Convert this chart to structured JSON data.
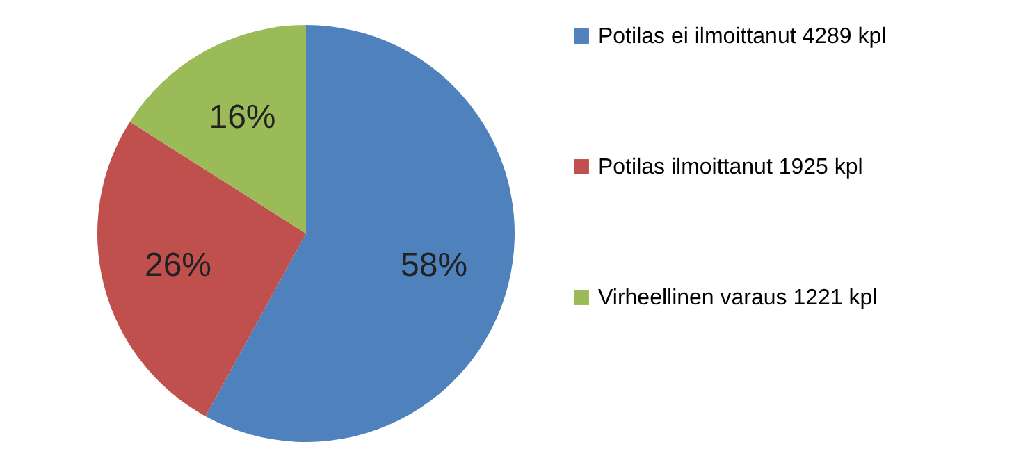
{
  "chart_data": {
    "type": "pie",
    "categories": [
      "Potilas ei ilmoittanut 4289 kpl",
      "Potilas ilmoittanut 1925 kpl",
      "Virheellinen varaus 1221 kpl"
    ],
    "values": [
      58,
      26,
      16
    ],
    "colors": [
      "#4f81bd",
      "#c0504d",
      "#9bbb59"
    ],
    "value_labels": [
      "58%",
      "26%",
      "16%"
    ],
    "legend": "right"
  }
}
